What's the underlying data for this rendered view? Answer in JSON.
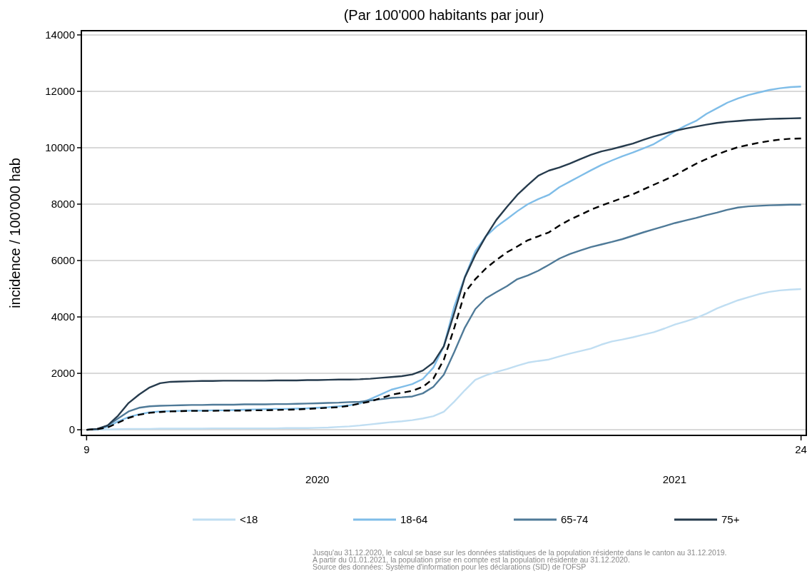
{
  "chart_data": {
    "type": "line",
    "title": "(Par 100'000 habitants par jour)",
    "ylabel": "incidence / 100'000 hab",
    "categories": [
      "9",
      null,
      null,
      null,
      null,
      null,
      null,
      null,
      null,
      null,
      null,
      null,
      null,
      null,
      null,
      null,
      null,
      null,
      null,
      null,
      null,
      null,
      null,
      null,
      null,
      null,
      null,
      null,
      null,
      null,
      null,
      null,
      null,
      null,
      null,
      null,
      null,
      null,
      null,
      null,
      null,
      null,
      null,
      null,
      null,
      null,
      null,
      null,
      null,
      null,
      null,
      null,
      null,
      null,
      null,
      null,
      null,
      null,
      null,
      null,
      null,
      null,
      null,
      null,
      null,
      null,
      null,
      null,
      "24"
    ],
    "series": [
      {
        "name": "<18",
        "color": "#c0def2",
        "values": [
          0,
          0,
          10,
          20,
          30,
          30,
          30,
          40,
          40,
          40,
          40,
          40,
          50,
          50,
          50,
          50,
          50,
          50,
          50,
          60,
          60,
          60,
          70,
          80,
          100,
          120,
          150,
          190,
          230,
          270,
          300,
          340,
          400,
          480,
          640,
          1000,
          1400,
          1770,
          1930,
          2050,
          2150,
          2270,
          2380,
          2440,
          2490,
          2600,
          2700,
          2790,
          2880,
          3020,
          3130,
          3200,
          3280,
          3370,
          3460,
          3590,
          3730,
          3840,
          3960,
          4120,
          4300,
          4450,
          4590,
          4700,
          4810,
          4890,
          4940,
          4970,
          4990
        ]
      },
      {
        "name": "18-64",
        "color": "#7fbde8",
        "values": [
          0,
          20,
          100,
          300,
          450,
          550,
          620,
          650,
          660,
          670,
          680,
          680,
          690,
          690,
          700,
          710,
          720,
          730,
          740,
          740,
          750,
          760,
          780,
          800,
          830,
          870,
          930,
          1090,
          1250,
          1420,
          1520,
          1620,
          1800,
          2200,
          2960,
          4380,
          5420,
          6330,
          6860,
          7200,
          7470,
          7750,
          8000,
          8180,
          8330,
          8600,
          8800,
          9000,
          9200,
          9390,
          9550,
          9700,
          9830,
          9980,
          10130,
          10350,
          10580,
          10780,
          10950,
          11200,
          11400,
          11600,
          11750,
          11870,
          11960,
          12050,
          12110,
          12150,
          12170
        ]
      },
      {
        "name": "65-74",
        "color": "#4f7a98",
        "values": [
          0,
          20,
          150,
          400,
          650,
          780,
          830,
          850,
          860,
          870,
          880,
          880,
          890,
          890,
          890,
          900,
          900,
          900,
          910,
          910,
          920,
          930,
          940,
          950,
          960,
          980,
          990,
          1040,
          1080,
          1130,
          1150,
          1180,
          1290,
          1520,
          1950,
          2760,
          3620,
          4280,
          4660,
          4880,
          5090,
          5340,
          5470,
          5640,
          5850,
          6070,
          6230,
          6360,
          6480,
          6570,
          6660,
          6760,
          6880,
          7000,
          7110,
          7220,
          7330,
          7420,
          7510,
          7610,
          7700,
          7800,
          7880,
          7920,
          7940,
          7960,
          7970,
          7980,
          7980
        ]
      },
      {
        "name": "75+",
        "color": "#263b4d",
        "values": [
          0,
          30,
          150,
          500,
          950,
          1250,
          1500,
          1650,
          1700,
          1710,
          1720,
          1730,
          1730,
          1740,
          1740,
          1740,
          1740,
          1740,
          1750,
          1750,
          1750,
          1760,
          1760,
          1770,
          1780,
          1780,
          1790,
          1810,
          1840,
          1870,
          1900,
          1960,
          2100,
          2380,
          2960,
          4150,
          5400,
          6200,
          6860,
          7440,
          7900,
          8330,
          8680,
          9010,
          9190,
          9300,
          9440,
          9600,
          9750,
          9870,
          9950,
          10050,
          10150,
          10280,
          10400,
          10500,
          10600,
          10680,
          10750,
          10820,
          10880,
          10920,
          10950,
          10980,
          11000,
          11020,
          11030,
          11040,
          11050
        ]
      },
      {
        "color": "#000000",
        "line_style": "dashed",
        "values": [
          0,
          20,
          80,
          250,
          420,
          530,
          600,
          630,
          650,
          660,
          670,
          670,
          670,
          680,
          680,
          680,
          690,
          690,
          700,
          710,
          720,
          740,
          760,
          780,
          800,
          850,
          930,
          1000,
          1120,
          1240,
          1310,
          1380,
          1520,
          1810,
          2480,
          3620,
          4860,
          5340,
          5720,
          6020,
          6290,
          6500,
          6720,
          6860,
          7000,
          7240,
          7450,
          7620,
          7800,
          7950,
          8080,
          8220,
          8350,
          8520,
          8690,
          8850,
          9020,
          9230,
          9430,
          9600,
          9760,
          9900,
          10020,
          10100,
          10180,
          10240,
          10290,
          10320,
          10330
        ]
      }
    ],
    "ylim": [
      -200,
      14150
    ],
    "yticks": [
      0,
      2000,
      4000,
      6000,
      8000,
      10000,
      12000,
      14000
    ],
    "grid": "y",
    "legend": "bottom",
    "annotations": [
      "2020",
      "2021",
      "Jusqu'au 31.12.2020, le calcul se base sur les données statistiques de la population résidente dans le canton au 31.12.2019.",
      "A partir du 01.01.2021, la population prise en compte est la population résidente au 31.12.2020.",
      "Source des données: Système d'information pour les déclarations (SID) de l'OFSP"
    ]
  }
}
